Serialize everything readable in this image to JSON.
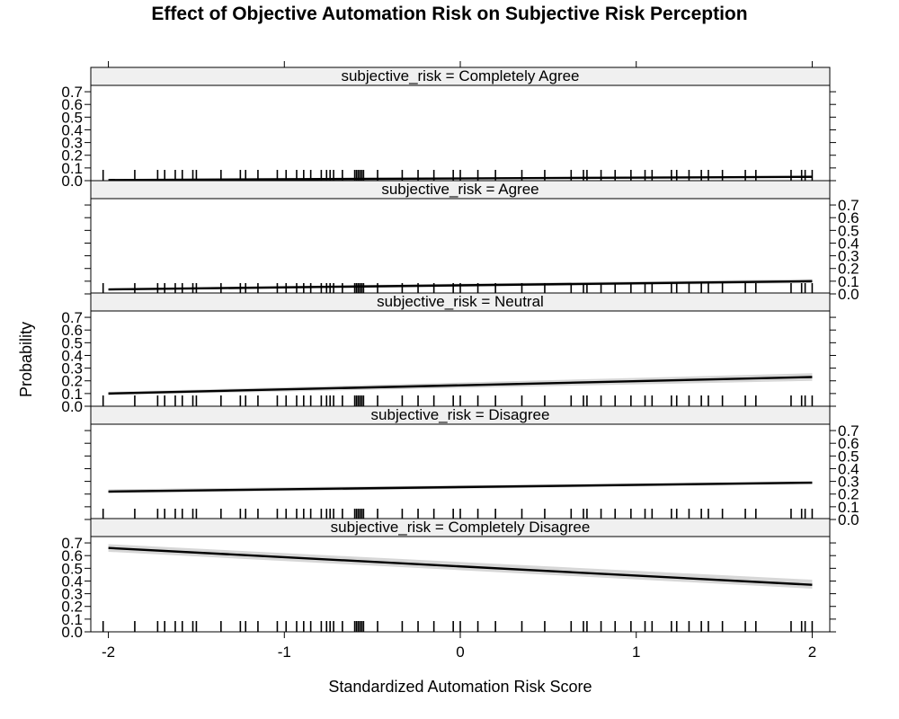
{
  "chart_data": {
    "type": "line",
    "title": "Effect of Objective Automation Risk on Subjective Risk Perception",
    "xlabel": "Standardized Automation Risk Score",
    "ylabel": "Probability",
    "xlim": [
      -2.1,
      2.1
    ],
    "ylim": [
      0,
      0.75
    ],
    "x_ticks": [
      -2,
      -1,
      0,
      1,
      2
    ],
    "x_tick_labels": [
      "-2",
      "-1",
      "0",
      "1",
      "2"
    ],
    "y_ticks": [
      0,
      0.1,
      0.2,
      0.3,
      0.4,
      0.5,
      0.6,
      0.7
    ],
    "y_tick_labels": [
      "0.0",
      "0.1",
      "0.2",
      "0.3",
      "0.4",
      "0.5",
      "0.6",
      "0.7"
    ],
    "grid": false,
    "confidence_band_color": "#d3d3d3",
    "line_color": "#000000",
    "strip_color": "#f0f0f0",
    "rug_x": [
      -2.03,
      -1.85,
      -1.72,
      -1.68,
      -1.62,
      -1.58,
      -1.52,
      -1.5,
      -1.36,
      -1.25,
      -1.22,
      -1.15,
      -1.04,
      -0.99,
      -0.93,
      -0.89,
      -0.85,
      -0.79,
      -0.76,
      -0.74,
      -0.72,
      -0.67,
      -0.6,
      -0.59,
      -0.58,
      -0.57,
      -0.56,
      -0.55,
      -0.47,
      -0.33,
      -0.24,
      -0.15,
      -0.04,
      0.0,
      0.1,
      0.2,
      0.35,
      0.48,
      0.63,
      0.7,
      0.72,
      0.8,
      0.88,
      0.97,
      1.05,
      1.09,
      1.2,
      1.23,
      1.3,
      1.37,
      1.41,
      1.49,
      1.62,
      1.68,
      1.88,
      1.94,
      1.96,
      2.0
    ],
    "panels": [
      {
        "strip": "subjective_risk = Completely Agree",
        "x": [
          -2,
          2
        ],
        "fit": [
          0.005,
          0.03
        ],
        "lower": [
          0.003,
          0.022
        ],
        "upper": [
          0.008,
          0.04
        ]
      },
      {
        "strip": "subjective_risk = Agree",
        "x": [
          -2,
          2
        ],
        "fit": [
          0.035,
          0.1
        ],
        "lower": [
          0.028,
          0.085
        ],
        "upper": [
          0.044,
          0.117
        ]
      },
      {
        "strip": "subjective_risk = Neutral",
        "x": [
          -2,
          2
        ],
        "fit": [
          0.1,
          0.23
        ],
        "lower": [
          0.088,
          0.2
        ],
        "upper": [
          0.113,
          0.26
        ]
      },
      {
        "strip": "subjective_risk = Disagree",
        "x": [
          -2,
          2
        ],
        "fit": [
          0.22,
          0.29
        ],
        "lower": [
          0.205,
          0.278
        ],
        "upper": [
          0.237,
          0.302
        ]
      },
      {
        "strip": "subjective_risk = Completely Disagree",
        "x": [
          -2,
          2
        ],
        "fit": [
          0.66,
          0.37
        ],
        "lower": [
          0.63,
          0.34
        ],
        "upper": [
          0.69,
          0.41
        ]
      }
    ]
  }
}
